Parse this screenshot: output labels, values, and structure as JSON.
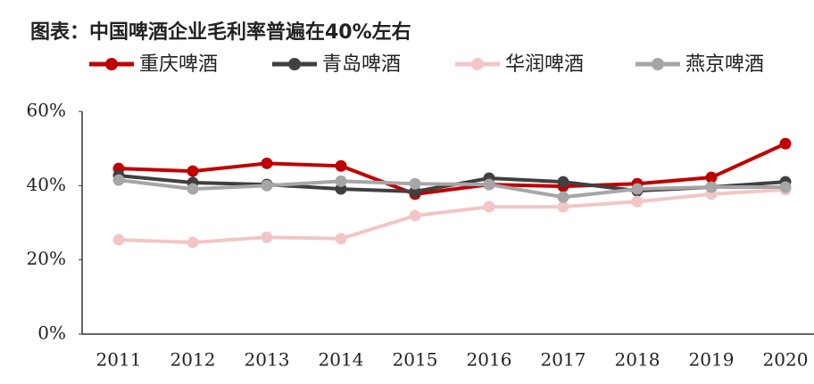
{
  "chart_data": {
    "type": "line",
    "title": "图表：中国啤酒企业毛利率普遍在40%左右",
    "categories": [
      "2011",
      "2012",
      "2013",
      "2014",
      "2015",
      "2016",
      "2017",
      "2018",
      "2019",
      "2020"
    ],
    "series": [
      {
        "name": "重庆啤酒",
        "color": "#c00000",
        "values": [
          44.6,
          43.9,
          46,
          45.3,
          37.7,
          40.3,
          39.8,
          40.5,
          42.2,
          51.3
        ]
      },
      {
        "name": "青岛啤酒",
        "color": "#404040",
        "values": [
          42.7,
          40.8,
          40.3,
          39.1,
          38.4,
          42,
          41,
          38.6,
          39.6,
          41
        ]
      },
      {
        "name": "华润啤酒",
        "color": "#f2c6c6",
        "values": [
          25.4,
          24.7,
          26.1,
          25.7,
          31.9,
          34.3,
          34.3,
          35.7,
          37.7,
          38.9
        ]
      },
      {
        "name": "燕京啤酒",
        "color": "#a6a6a6",
        "values": [
          41.5,
          39.1,
          40,
          41.2,
          40.5,
          40.3,
          36.9,
          39.1,
          39.6,
          39.6
        ]
      }
    ],
    "ylim": [
      0,
      60
    ],
    "yticks": [
      {
        "value": 0,
        "label": "0%"
      },
      {
        "value": 20,
        "label": "20%"
      },
      {
        "value": 40,
        "label": "40%"
      },
      {
        "value": 60,
        "label": "60%"
      }
    ],
    "grid": false
  }
}
